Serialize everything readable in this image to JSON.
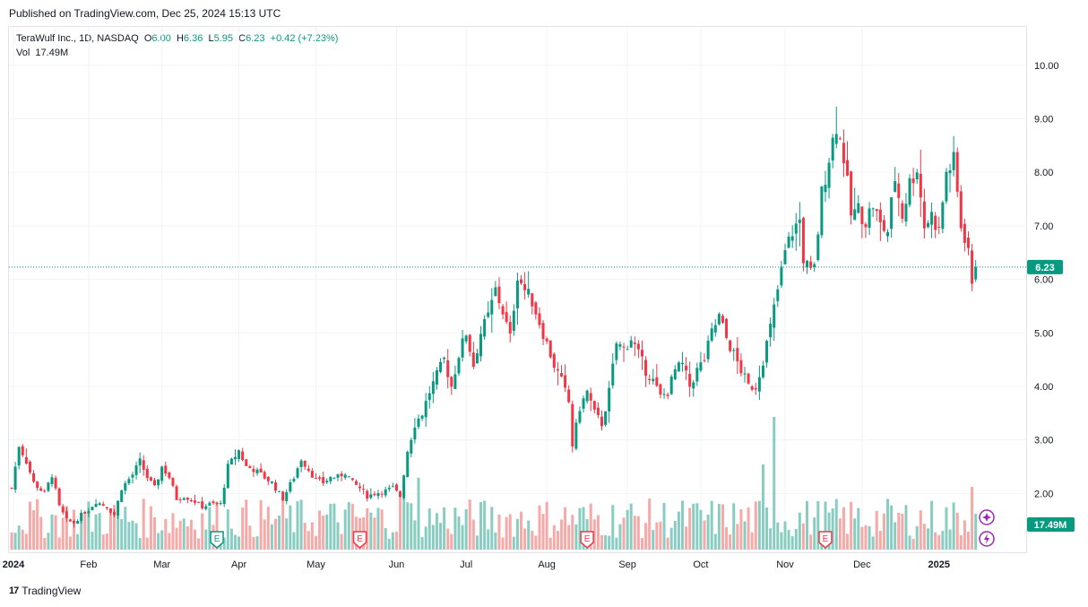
{
  "header": {
    "published": "Published on TradingView.com, Dec 25, 2024 15:13 UTC"
  },
  "legend": {
    "symbol": "TeraWulf Inc., 1D, NASDAQ",
    "open_label": "O",
    "open": "6.00",
    "high_label": "H",
    "high": "6.36",
    "low_label": "L",
    "low": "5.95",
    "close_label": "C",
    "close": "6.23",
    "change": "+0.42 (+7.23%)",
    "vol_label": "Vol",
    "vol": "17.49M"
  },
  "price_badge": "6.23",
  "vol_badge": "17.49M",
  "footer": {
    "brand": "TradingView",
    "logo": "17"
  },
  "colors": {
    "up": "#089981",
    "down": "#f23645",
    "up_vol": "#89cdc2",
    "down_vol": "#f7a9a7",
    "grid": "#f0f3fa",
    "axis_text": "#131722"
  },
  "chart_data": {
    "type": "candlestick",
    "title": "TeraWulf Inc., 1D, NASDAQ",
    "ylim": [
      1.05,
      10.3
    ],
    "y_ticks": [
      "2.00",
      "3.00",
      "4.00",
      "5.00",
      "6.00",
      "7.00",
      "8.00",
      "9.00",
      "10.00"
    ],
    "x_labels": [
      {
        "label": "2024",
        "t": 0
      },
      {
        "label": "Feb",
        "t": 21
      },
      {
        "label": "Mar",
        "t": 41
      },
      {
        "label": "Apr",
        "t": 62
      },
      {
        "label": "May",
        "t": 83
      },
      {
        "label": "Jun",
        "t": 105
      },
      {
        "label": "Jul",
        "t": 124
      },
      {
        "label": "Aug",
        "t": 146
      },
      {
        "label": "Sep",
        "t": 168
      },
      {
        "label": "Oct",
        "t": 188
      },
      {
        "label": "Nov",
        "t": 211
      },
      {
        "label": "Dec",
        "t": 232
      },
      {
        "label": "2025",
        "t": 253
      }
    ],
    "last_close": 6.23,
    "earnings_markers": [
      {
        "t": 56,
        "kind": "E",
        "color": "#089981"
      },
      {
        "t": 95,
        "kind": "E",
        "color": "#f23645"
      },
      {
        "t": 157,
        "kind": "E",
        "color": "#f23645"
      },
      {
        "t": 222,
        "kind": "E",
        "color": "#f23645"
      }
    ],
    "anchors": [
      [
        0,
        2.1
      ],
      [
        2,
        2.9
      ],
      [
        4,
        2.6
      ],
      [
        6,
        2.2
      ],
      [
        9,
        2.0
      ],
      [
        11,
        2.35
      ],
      [
        13,
        1.75
      ],
      [
        15,
        1.5
      ],
      [
        17,
        1.45
      ],
      [
        19,
        1.6
      ],
      [
        21,
        1.7
      ],
      [
        23,
        1.85
      ],
      [
        26,
        1.75
      ],
      [
        28,
        1.6
      ],
      [
        30,
        2.1
      ],
      [
        33,
        2.35
      ],
      [
        35,
        2.6
      ],
      [
        37,
        2.3
      ],
      [
        39,
        2.1
      ],
      [
        41,
        2.5
      ],
      [
        43,
        2.3
      ],
      [
        45,
        1.9
      ],
      [
        47,
        1.95
      ],
      [
        50,
        1.85
      ],
      [
        52,
        1.75
      ],
      [
        54,
        1.8
      ],
      [
        57,
        1.8
      ],
      [
        59,
        2.5
      ],
      [
        62,
        2.8
      ],
      [
        64,
        2.5
      ],
      [
        66,
        2.45
      ],
      [
        69,
        2.3
      ],
      [
        71,
        2.2
      ],
      [
        74,
        1.9
      ],
      [
        77,
        2.3
      ],
      [
        79,
        2.65
      ],
      [
        81,
        2.45
      ],
      [
        83,
        2.25
      ],
      [
        85,
        2.2
      ],
      [
        87,
        2.3
      ],
      [
        89,
        2.3
      ],
      [
        91,
        2.4
      ],
      [
        93,
        2.2
      ],
      [
        95,
        2.1
      ],
      [
        97,
        1.95
      ],
      [
        99,
        2.0
      ],
      [
        102,
        2.05
      ],
      [
        104,
        2.1
      ],
      [
        106,
        1.95
      ],
      [
        108,
        2.8
      ],
      [
        110,
        3.3
      ],
      [
        112,
        3.5
      ],
      [
        114,
        3.9
      ],
      [
        116,
        4.2
      ],
      [
        118,
        4.5
      ],
      [
        120,
        4.0
      ],
      [
        122,
        4.6
      ],
      [
        124,
        5.0
      ],
      [
        126,
        4.4
      ],
      [
        128,
        5.0
      ],
      [
        130,
        5.3
      ],
      [
        132,
        5.8
      ],
      [
        134,
        5.4
      ],
      [
        136,
        4.9
      ],
      [
        138,
        6.1
      ],
      [
        140,
        5.8
      ],
      [
        142,
        5.6
      ],
      [
        144,
        5.2
      ],
      [
        146,
        4.8
      ],
      [
        148,
        4.4
      ],
      [
        150,
        4.1
      ],
      [
        152,
        3.7
      ],
      [
        153,
        2.9
      ],
      [
        155,
        3.6
      ],
      [
        157,
        3.9
      ],
      [
        159,
        3.5
      ],
      [
        161,
        3.3
      ],
      [
        163,
        3.9
      ],
      [
        165,
        4.8
      ],
      [
        167,
        4.7
      ],
      [
        169,
        4.9
      ],
      [
        171,
        4.6
      ],
      [
        173,
        4.3
      ],
      [
        175,
        4.1
      ],
      [
        177,
        3.8
      ],
      [
        179,
        3.9
      ],
      [
        181,
        4.3
      ],
      [
        183,
        4.4
      ],
      [
        185,
        4.0
      ],
      [
        187,
        4.3
      ],
      [
        189,
        4.5
      ],
      [
        191,
        5.0
      ],
      [
        193,
        5.3
      ],
      [
        195,
        4.9
      ],
      [
        197,
        4.6
      ],
      [
        199,
        4.3
      ],
      [
        201,
        4.0
      ],
      [
        203,
        4.0
      ],
      [
        205,
        4.5
      ],
      [
        207,
        5.1
      ],
      [
        209,
        5.8
      ],
      [
        211,
        6.5
      ],
      [
        213,
        6.9
      ],
      [
        215,
        7.1
      ],
      [
        216,
        6.4
      ],
      [
        218,
        6.1
      ],
      [
        219,
        6.2
      ],
      [
        221,
        7.6
      ],
      [
        223,
        8.3
      ],
      [
        225,
        8.9
      ],
      [
        227,
        8.3
      ],
      [
        229,
        7.2
      ],
      [
        231,
        7.3
      ],
      [
        233,
        7.1
      ],
      [
        235,
        7.4
      ],
      [
        237,
        7.0
      ],
      [
        239,
        6.9
      ],
      [
        241,
        7.9
      ],
      [
        243,
        7.2
      ],
      [
        245,
        7.8
      ],
      [
        247,
        8.1
      ],
      [
        249,
        7.0
      ],
      [
        251,
        7.2
      ],
      [
        253,
        6.9
      ],
      [
        255,
        8.0
      ],
      [
        257,
        8.2
      ],
      [
        259,
        7.0
      ],
      [
        261,
        6.6
      ],
      [
        262,
        5.81
      ],
      [
        263,
        6.23
      ]
    ],
    "volume_axis_note": "volume histogram bottom pane"
  }
}
